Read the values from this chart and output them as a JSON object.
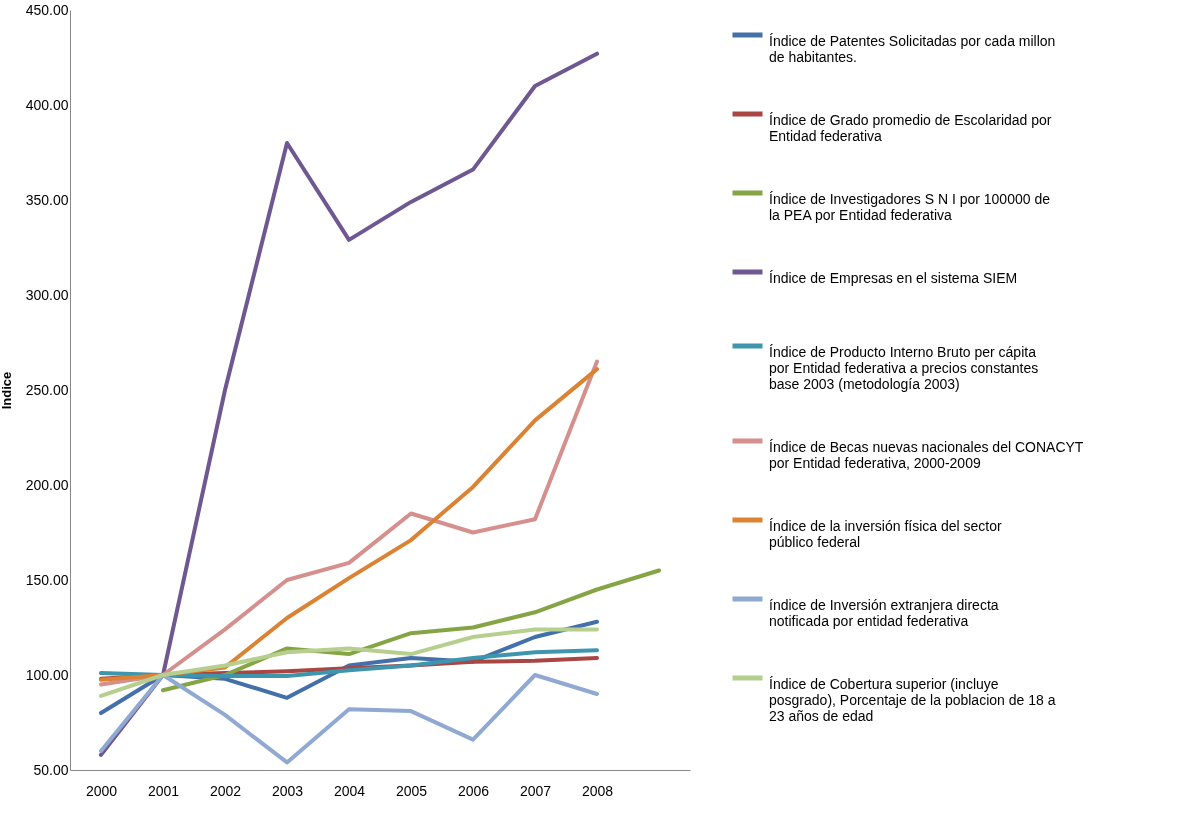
{
  "chart_data": {
    "type": "line",
    "ylabel": "Indice",
    "categories": [
      "2000",
      "2001",
      "2002",
      "2003",
      "2004",
      "2005",
      "2006",
      "2007",
      "2008",
      null
    ],
    "ylim": [
      50,
      450
    ],
    "yticks": [
      {
        "value": 50,
        "label": "50.00"
      },
      {
        "value": 100,
        "label": "100.00"
      },
      {
        "value": 150,
        "label": "150.00"
      },
      {
        "value": 200,
        "label": "200.00"
      },
      {
        "value": 250,
        "label": "250.00"
      },
      {
        "value": 300,
        "label": "300.00"
      },
      {
        "value": 350,
        "label": "350.00"
      },
      {
        "value": 400,
        "label": "400.00"
      },
      {
        "value": 450,
        "label": "450.00"
      }
    ],
    "grid": false,
    "legend": "right",
    "marker": "none",
    "line_style": "solid",
    "series": [
      {
        "name": "Índice de Patentes Solicitadas por cada millon de habitantes.",
        "color": "#4470aa",
        "values": [
          80,
          100,
          98,
          88,
          105,
          109,
          107,
          120,
          128,
          null
        ]
      },
      {
        "name": "Índice de Grado promedio de Escolaridad por Entidad federativa",
        "color": "#a94543",
        "values": [
          98,
          100,
          101,
          102,
          103.5,
          105,
          107,
          107.5,
          109,
          null
        ]
      },
      {
        "name": "Índice de Investigadores S N I por 100000 de la PEA por Entidad federativa",
        "color": "#85a545",
        "values": [
          null,
          92,
          100,
          114,
          111,
          122,
          125,
          133,
          145,
          155
        ]
      },
      {
        "name": "Índice de Empresas en el sistema SIEM",
        "color": "#6f5792",
        "values": [
          58,
          100,
          250,
          380,
          329,
          349,
          366,
          410,
          427,
          null
        ]
      },
      {
        "name": "Índice de Producto Interno Bruto per cápita por Entidad federativa a precios constantes base 2003  (metodología 2003)",
        "color": "#3d96ae",
        "values": [
          101,
          100,
          99.5,
          99.5,
          102.5,
          105,
          109,
          112,
          113,
          null
        ]
      },
      {
        "name": "Índice de Becas nuevas nacionales del CONACYT por Entidad federativa, 2000-2009",
        "color": "#d58f8d",
        "values": [
          95,
          100,
          124,
          150,
          159,
          185,
          175,
          182,
          265,
          null
        ]
      },
      {
        "name": "Índice de la inversión física del sector público federal",
        "color": "#db8233",
        "values": [
          97.5,
          100,
          104,
          130,
          151,
          171,
          199,
          234,
          261,
          null
        ]
      },
      {
        "name": "índice de Inversión extranjera directa notificada por entidad federativa",
        "color": "#8fa9d2",
        "values": [
          60,
          100,
          79,
          54,
          82,
          81,
          66,
          100,
          90,
          null
        ]
      },
      {
        "name": "Índice de Cobertura superior (incluye posgrado), Porcentaje de la poblacion de 18 a 23 años de edad",
        "color": "#b6cf8f",
        "values": [
          89,
          100,
          105,
          112,
          114,
          111,
          120,
          124,
          124,
          null
        ]
      }
    ]
  }
}
